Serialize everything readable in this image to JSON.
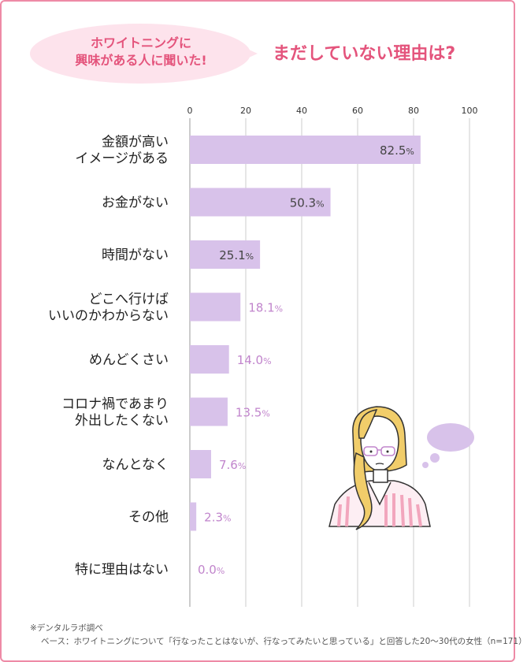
{
  "header": {
    "bubble_line1": "ホワイトニングに",
    "bubble_line2": "興味がある人に聞いた!",
    "title": "まだしていない理由は?"
  },
  "colors": {
    "bar": "#d8c2ea",
    "label_inside": "#444444",
    "label_outside": "#c185cc",
    "accent": "#e4547c",
    "grid": "#cccccc"
  },
  "chart_data": {
    "type": "bar",
    "orientation": "horizontal",
    "categories": [
      [
        "金額が高い",
        "イメージがある"
      ],
      [
        "お金がない"
      ],
      [
        "時間がない"
      ],
      [
        "どこへ行けば",
        "いいのかわからない"
      ],
      [
        "めんどくさい"
      ],
      [
        "コロナ禍であまり",
        "外出したくない"
      ],
      [
        "なんとなく"
      ],
      [
        "その他"
      ],
      [
        "特に理由はない"
      ]
    ],
    "values": [
      82.5,
      50.3,
      25.1,
      18.1,
      14.0,
      13.5,
      7.6,
      2.3,
      0.0
    ],
    "value_labels": [
      "82.5",
      "50.3",
      "25.1",
      "18.1",
      "14.0",
      "13.5",
      "7.6",
      "2.3",
      "0.0"
    ],
    "unit": "%",
    "xlim": [
      0,
      100
    ],
    "xticks": [
      0,
      20,
      40,
      60,
      80,
      100
    ],
    "grid": true
  },
  "footnote": {
    "line1": "※デンタルラボ調べ",
    "line2": "ベース：ホワイトニングについて「行なったことはないが、行なってみたいと思っている」と回答した20～30代の女性（n=171）"
  }
}
